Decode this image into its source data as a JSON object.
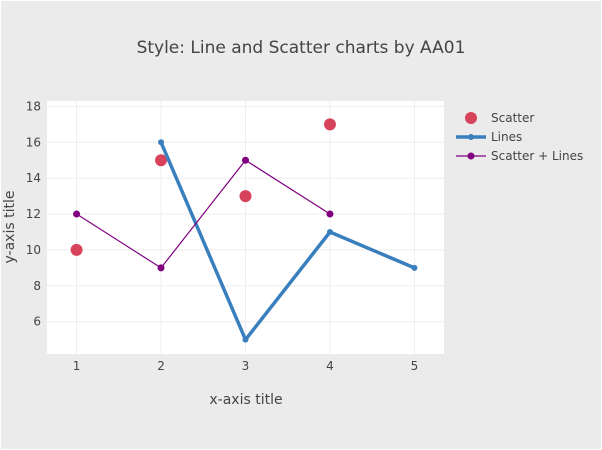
{
  "chart_data": {
    "type": "line",
    "title": "Style: Line and Scatter charts by AA01",
    "xlabel": "x-axis title",
    "ylabel": "y-axis title",
    "xlim": [
      0.65,
      5.35
    ],
    "ylim": [
      4.2,
      18.3
    ],
    "x_ticks": [
      "1",
      "2",
      "3",
      "4",
      "5"
    ],
    "y_ticks": [
      "6",
      "8",
      "10",
      "12",
      "14",
      "16",
      "18"
    ],
    "grid": true,
    "legend_position": "right",
    "series": [
      {
        "name": "Scatter",
        "mode": "markers",
        "color": "#d8435c",
        "x": [
          1,
          2,
          3,
          4
        ],
        "y": [
          10,
          15,
          13,
          17
        ]
      },
      {
        "name": "Lines",
        "mode": "lines",
        "color": "#3a7fbd",
        "x": [
          2,
          3,
          4,
          5
        ],
        "y": [
          16,
          5,
          11,
          9
        ]
      },
      {
        "name": "Scatter + Lines",
        "mode": "lines+markers",
        "color": "#800080",
        "x": [
          1,
          2,
          3,
          4
        ],
        "y": [
          12,
          9,
          15,
          12
        ]
      }
    ]
  }
}
